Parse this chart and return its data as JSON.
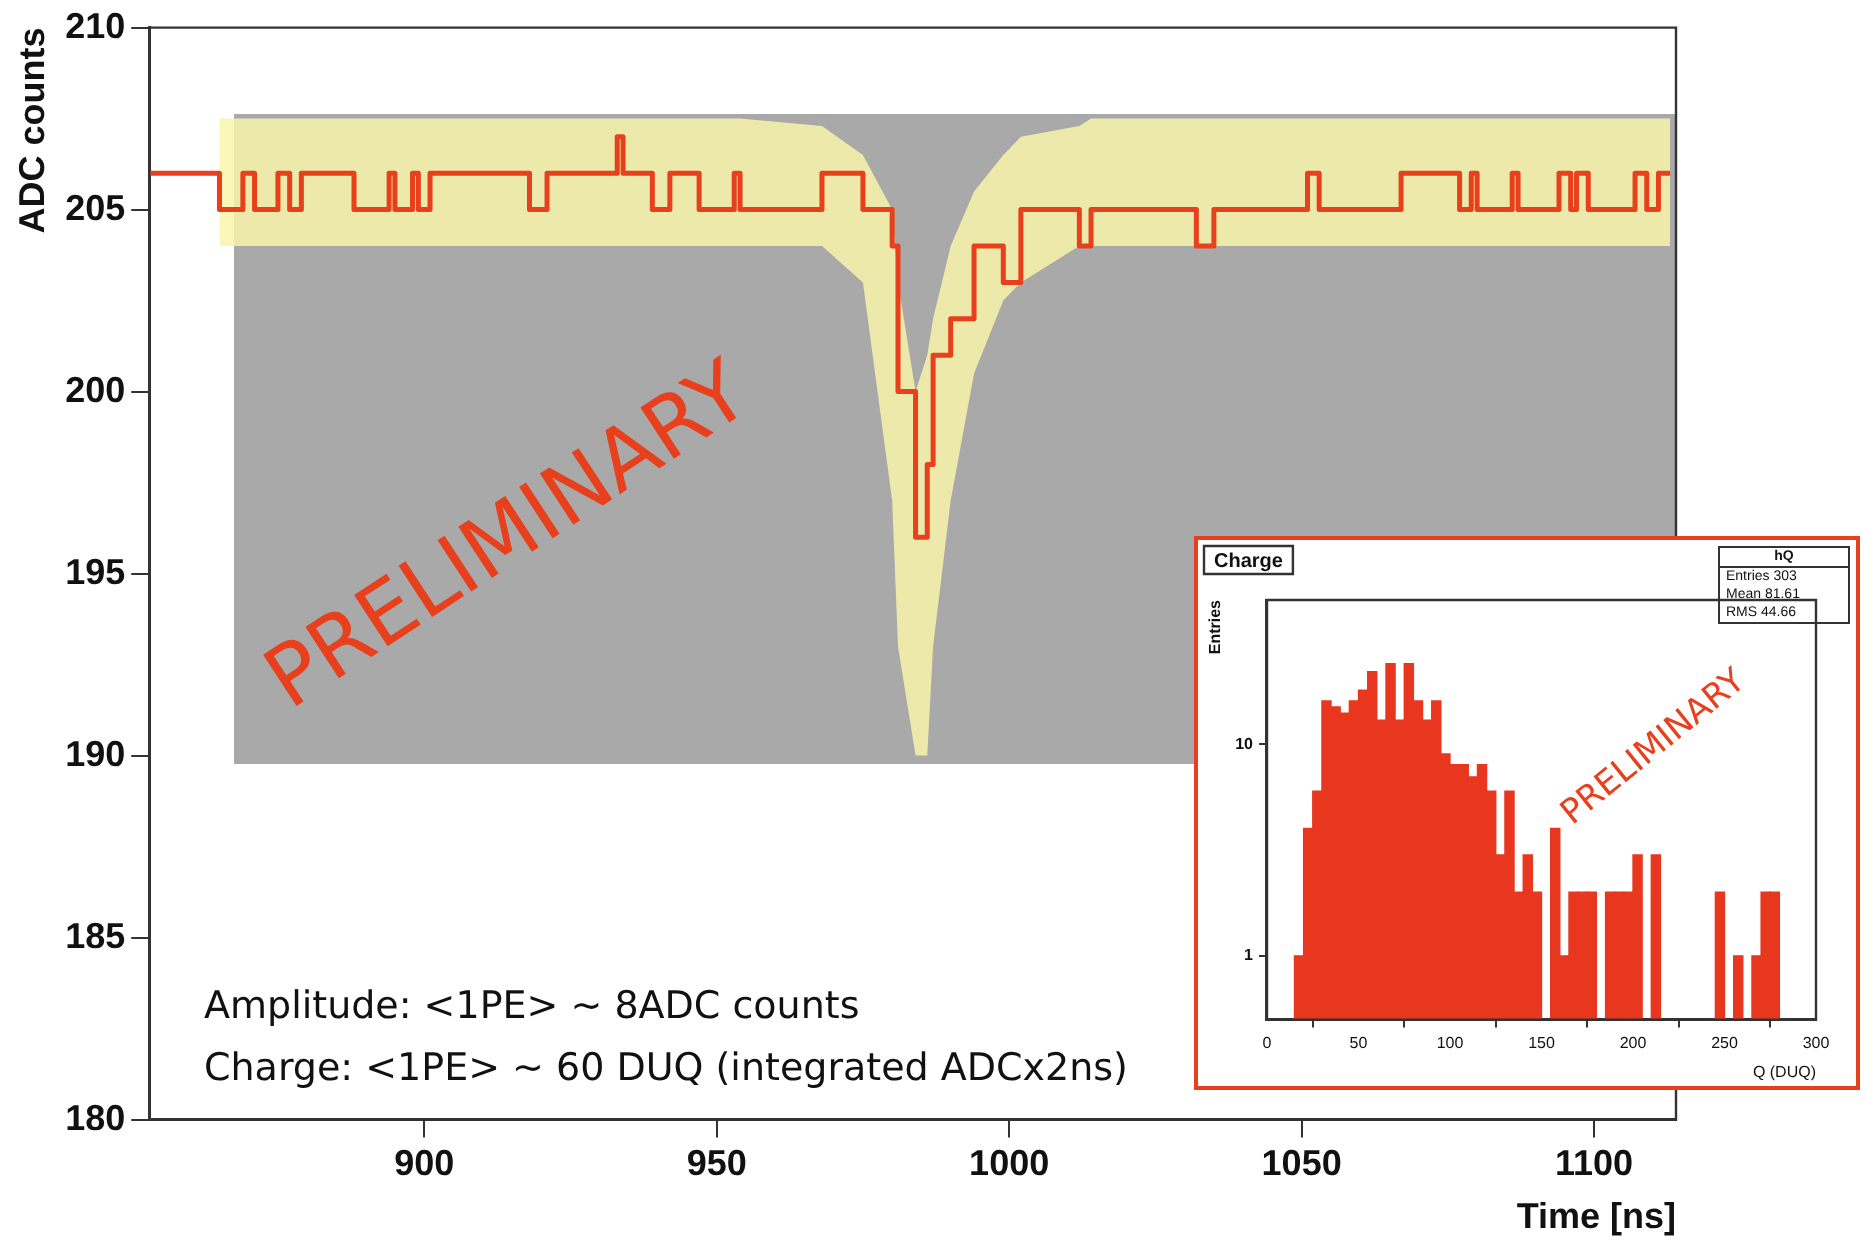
{
  "chart_data": [
    {
      "type": "step",
      "xlabel": "Time [ns]",
      "ylabel": "ADC counts",
      "xlim": [
        853,
        1114
      ],
      "ylim": [
        180,
        210
      ],
      "xticks": [
        900,
        950,
        1000,
        1050,
        1100
      ],
      "yticks": [
        180,
        185,
        190,
        195,
        200,
        205,
        210
      ],
      "annotations": [
        "PRELIMINARY",
        "Amplitude: <1PE> ~ 8ADC counts",
        "Charge: <1PE> ~ 60 DUQ (integrated ADCx2ns)"
      ],
      "series": [
        {
          "color": "#e8401c",
          "x": [
            853,
            865,
            869,
            871,
            875,
            877,
            879,
            888,
            894,
            895,
            898,
            899,
            901,
            918,
            921,
            933,
            934,
            939,
            942,
            947,
            953,
            954,
            968,
            975,
            980,
            981,
            984,
            986,
            987,
            990,
            994,
            999,
            1002,
            1012,
            1014,
            1032,
            1035,
            1051,
            1053,
            1067,
            1077,
            1079,
            1080,
            1086,
            1087,
            1094,
            1096,
            1097,
            1099,
            1107,
            1109,
            1111,
            1113
          ],
          "values": [
            206,
            205,
            206,
            205,
            206,
            205,
            206,
            205,
            206,
            205,
            206,
            205,
            206,
            205,
            206,
            207,
            206,
            205,
            206,
            205,
            206,
            205,
            206,
            205,
            204,
            200,
            196,
            198,
            201,
            202,
            204,
            203,
            205,
            204,
            205,
            204,
            205,
            206,
            205,
            206,
            205,
            206,
            205,
            206,
            205,
            206,
            205,
            206,
            205,
            206,
            205,
            206,
            206
          ],
          "lower": [
            null,
            204,
            204,
            204,
            204,
            204,
            204,
            204,
            204,
            204,
            204,
            204,
            204,
            204,
            204,
            204,
            204,
            204,
            204,
            204,
            204,
            204,
            204,
            203,
            197,
            193,
            190,
            190,
            193,
            197,
            200.5,
            202.5,
            203,
            204,
            204,
            204,
            204,
            204,
            204,
            204,
            204,
            204,
            204,
            204,
            204,
            204,
            204,
            204,
            204,
            204,
            204,
            204,
            204
          ],
          "upper": [
            null,
            207.5,
            207.5,
            207.5,
            207.5,
            207.5,
            207.5,
            207.5,
            207.5,
            207.5,
            207.5,
            207.5,
            207.5,
            207.5,
            207.5,
            207.5,
            207.5,
            207.5,
            207.5,
            207.5,
            207.5,
            207.5,
            207.3,
            206.5,
            205,
            203,
            200,
            201,
            202,
            204,
            205.5,
            206.5,
            207,
            207.3,
            207.5,
            207.5,
            207.5,
            207.5,
            207.5,
            207.5,
            207.5,
            207.5,
            207.5,
            207.5,
            207.5,
            207.5,
            207.5,
            207.5,
            207.5,
            207.5,
            207.5,
            207.5,
            207.5
          ]
        }
      ]
    },
    {
      "type": "histogram",
      "title": "Charge",
      "xlabel": "Q (DUQ)",
      "ylabel": "Entries",
      "log": true,
      "xlim": [
        0,
        300
      ],
      "ylim": [
        0.5,
        48
      ],
      "xticks": [
        0,
        50,
        100,
        150,
        200,
        250,
        300
      ],
      "yticks": [
        1,
        10
      ],
      "color": "#e8361f",
      "annotations": [
        "hQ",
        "Entries 303",
        "Mean 81.61",
        "RMS 44.66",
        "PRELIMINARY"
      ],
      "bins": [
        15,
        20,
        25,
        30,
        35,
        40,
        45,
        50,
        55,
        60,
        65,
        70,
        75,
        80,
        85,
        90,
        95,
        100,
        105,
        110,
        115,
        120,
        125,
        130,
        135,
        140,
        145,
        150,
        155,
        160,
        165,
        170,
        175,
        180,
        185,
        190,
        195,
        200,
        205,
        210,
        215,
        220,
        225,
        230,
        235,
        240,
        245,
        250,
        255,
        260,
        265,
        270,
        275,
        280,
        285
      ],
      "values": [
        1,
        4,
        6,
        16,
        15,
        14,
        16,
        18,
        22,
        13,
        24,
        13,
        24,
        16,
        13,
        16,
        9,
        8,
        8,
        7,
        8,
        6,
        3,
        6,
        2,
        3,
        2,
        null,
        4,
        1,
        2,
        2,
        2,
        null,
        2,
        2,
        2,
        3,
        null,
        3,
        null,
        null,
        null,
        null,
        null,
        null,
        2,
        null,
        1,
        null,
        1,
        2,
        2,
        null
      ]
    }
  ]
}
